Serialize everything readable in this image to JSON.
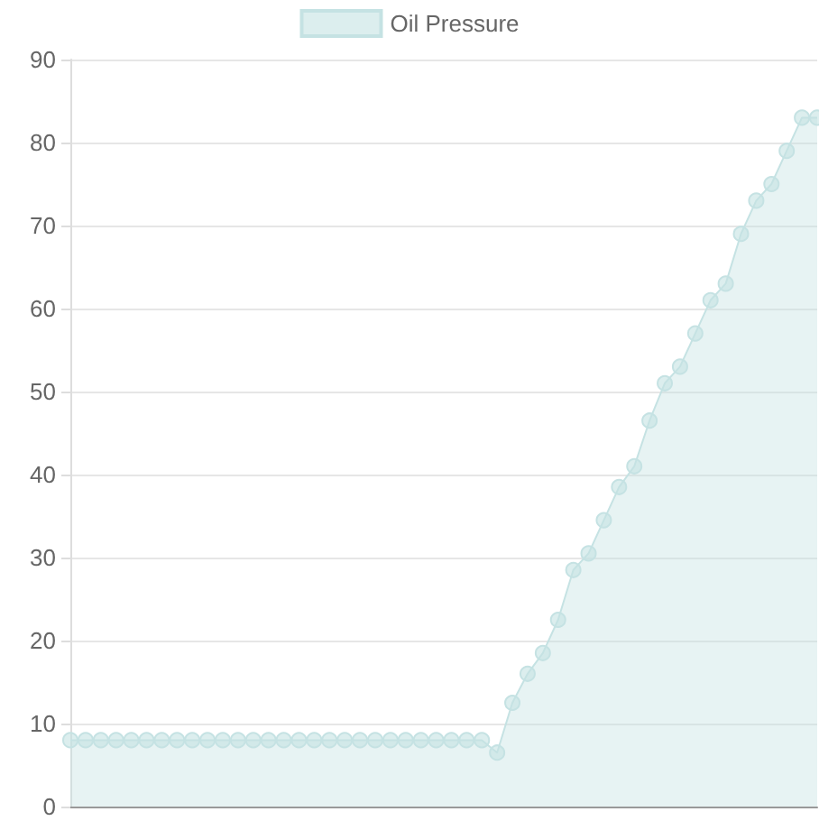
{
  "chart_data": {
    "type": "area",
    "categories": [
      null,
      null,
      null,
      null,
      null,
      null,
      null,
      null,
      null,
      null,
      null,
      null,
      null,
      null,
      null,
      null,
      null,
      null,
      null,
      null,
      null,
      null,
      null,
      null,
      null,
      null,
      null,
      null,
      null,
      null,
      null,
      null,
      null,
      null,
      null,
      null,
      null,
      null,
      null,
      null,
      null,
      null,
      null,
      null,
      null,
      null,
      null,
      null,
      null,
      null
    ],
    "series": [
      {
        "name": "Oil Pressure",
        "color": "#c5e2e3",
        "values": [
          8,
          8,
          8,
          8,
          8,
          8,
          8,
          8,
          8,
          8,
          8,
          8,
          8,
          8,
          8,
          8,
          8,
          8,
          8,
          8,
          8,
          8,
          8,
          8,
          8,
          8,
          8,
          8,
          6.5,
          12.5,
          16,
          18.5,
          22.5,
          28.5,
          30.5,
          34.5,
          38.5,
          41,
          46.5,
          51,
          53,
          57,
          61,
          63,
          69,
          73,
          75,
          79,
          83,
          83
        ]
      }
    ],
    "ylim": [
      0,
      90
    ],
    "yticks": [
      0,
      10,
      20,
      30,
      40,
      50,
      60,
      70,
      80,
      90
    ],
    "grid": "y",
    "legend": "top",
    "marker": "circle",
    "tick_labels": "y"
  }
}
